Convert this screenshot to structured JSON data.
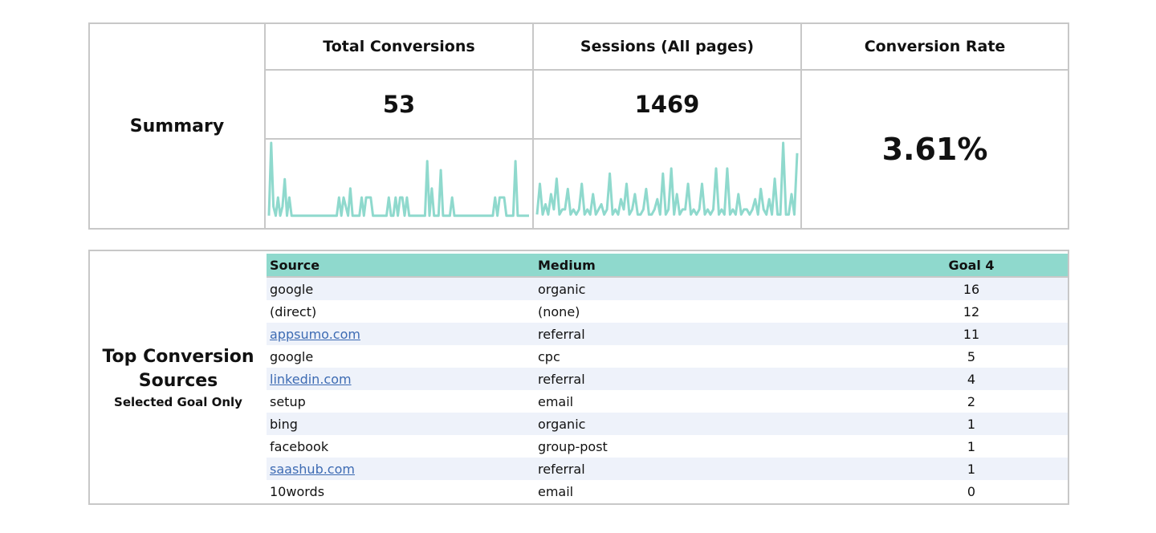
{
  "summary": {
    "label": "Summary",
    "metrics": {
      "total_conversions": {
        "title": "Total Conversions",
        "value": "53"
      },
      "sessions": {
        "title": "Sessions (All pages)",
        "value": "1469"
      },
      "conversion_rate": {
        "title": "Conversion Rate",
        "value": "3.61%"
      }
    },
    "sparkline_color": "#8fd9cd"
  },
  "chart_data": [
    {
      "type": "line",
      "series": [
        {
          "values": [
            1,
            9,
            2,
            1,
            3,
            1,
            2,
            5,
            1,
            3,
            1,
            1,
            1,
            1,
            1,
            1,
            1,
            1,
            1,
            1,
            1,
            1,
            1,
            1,
            1,
            1,
            1,
            1,
            1,
            1,
            1,
            3,
            1,
            3,
            2,
            1,
            4,
            1,
            1,
            1,
            1,
            3,
            1,
            3,
            3,
            3,
            1,
            1,
            1,
            1,
            1,
            1,
            1,
            3,
            1,
            1,
            3,
            1,
            3,
            3,
            1,
            3,
            1,
            1,
            1,
            1,
            1,
            1,
            1,
            1,
            7,
            1,
            4,
            1,
            1,
            1,
            6,
            1,
            1,
            1,
            1,
            3,
            1,
            1,
            1,
            1,
            1,
            1,
            1,
            1,
            1,
            1,
            1,
            1,
            1,
            1,
            1,
            1,
            1,
            1,
            3,
            1,
            3,
            3,
            3,
            1,
            1,
            1,
            1,
            7,
            1,
            1,
            1,
            1,
            1,
            1
          ]
        }
      ]
    },
    {
      "type": "line",
      "series": [
        {
          "values": [
            2,
            8,
            2,
            4,
            2,
            6,
            3,
            9,
            2,
            3,
            3,
            7,
            2,
            3,
            2,
            3,
            8,
            2,
            3,
            2,
            6,
            2,
            3,
            4,
            2,
            3,
            10,
            2,
            3,
            2,
            5,
            3,
            8,
            2,
            3,
            6,
            2,
            2,
            3,
            7,
            2,
            2,
            3,
            5,
            2,
            10,
            2,
            3,
            11,
            2,
            6,
            2,
            3,
            3,
            8,
            2,
            3,
            2,
            3,
            8,
            2,
            3,
            2,
            3,
            11,
            2,
            3,
            2,
            11,
            2,
            3,
            2,
            6,
            2,
            3,
            3,
            2,
            3,
            5,
            2,
            7,
            3,
            2,
            5,
            2,
            9,
            2,
            2,
            16,
            2,
            2,
            6,
            2,
            14
          ]
        }
      ]
    }
  ],
  "sources": {
    "title": "Top Conversion Sources",
    "subtitle": "Selected Goal Only",
    "columns": [
      "Source",
      "Medium",
      "Goal 4"
    ],
    "rows": [
      [
        "google",
        "organic",
        "16"
      ],
      [
        "(direct)",
        "(none)",
        "12"
      ],
      [
        "appsumo.com",
        "referral",
        "11"
      ],
      [
        "google",
        "cpc",
        "5"
      ],
      [
        "linkedin.com",
        "referral",
        "4"
      ],
      [
        "setup",
        "email",
        "2"
      ],
      [
        "bing",
        "organic",
        "1"
      ],
      [
        "facebook",
        "group-post",
        "1"
      ],
      [
        "saashub.com",
        "referral",
        "1"
      ],
      [
        "10words",
        "email",
        "0"
      ]
    ]
  }
}
